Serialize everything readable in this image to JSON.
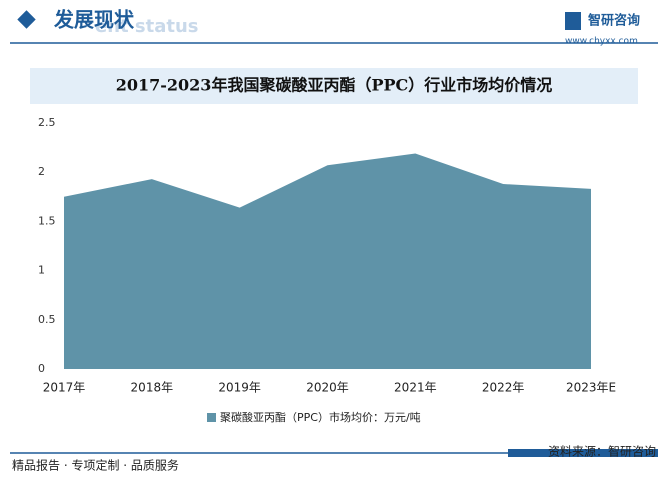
{
  "header": {
    "title": "发展现状",
    "subtitle": "ent status",
    "brand": "智研咨询",
    "url": "www.chyxx.com"
  },
  "chart_data": {
    "type": "area",
    "title": "2017-2023年我国聚碳酸亚丙酯（PPC）行业市场均价情况",
    "categories": [
      "2017年",
      "2018年",
      "2019年",
      "2020年",
      "2021年",
      "2022年",
      "2023年E"
    ],
    "series": [
      {
        "name": "聚碳酸亚丙酯（PPC）市场均价：万元/吨",
        "color": "#5f93a8",
        "values": [
          1.75,
          1.93,
          1.64,
          2.07,
          2.19,
          1.88,
          1.83
        ]
      }
    ],
    "ylim": [
      0,
      2.5
    ],
    "yticks": [
      0,
      0.5,
      1,
      1.5,
      2,
      2.5
    ],
    "grid": false,
    "legend": "bottom"
  },
  "footer": {
    "left": "精品报告 · 专项定制 · 品质服务",
    "source": "资料来源：智研咨询"
  }
}
